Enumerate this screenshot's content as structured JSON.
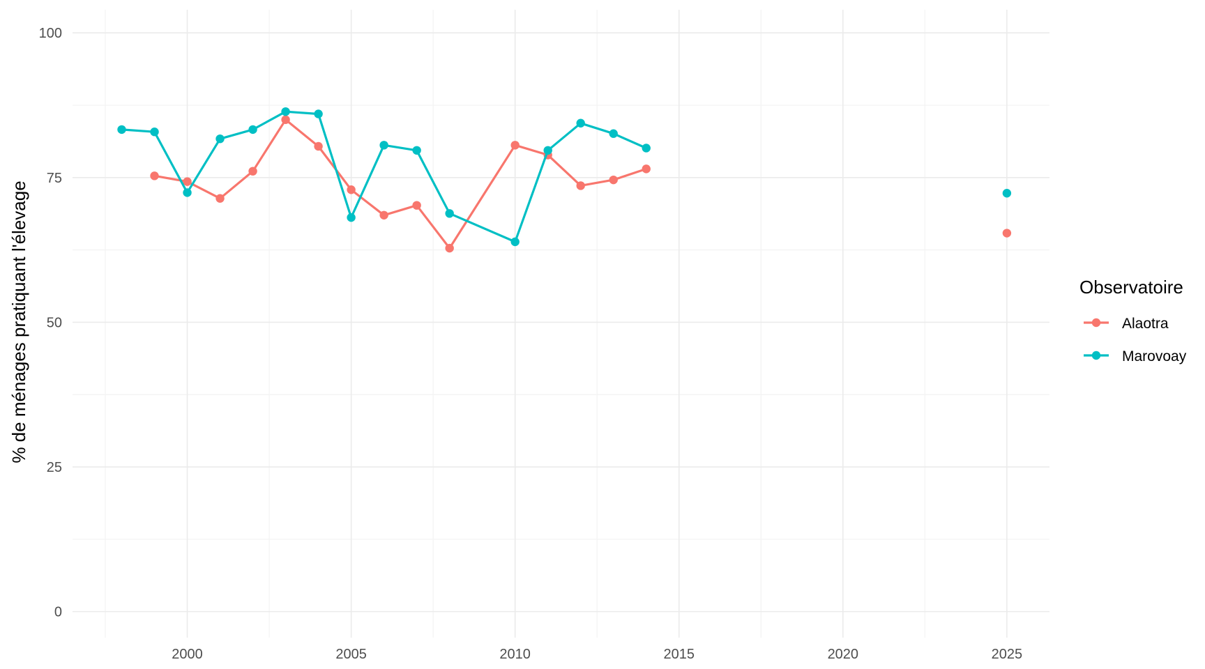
{
  "chart_data": {
    "type": "line",
    "title": "",
    "xlabel": "",
    "ylabel": "% de ménages pratiquant l'élevage",
    "xlim": [
      1996.5,
      2026.3
    ],
    "ylim": [
      -4.5,
      104
    ],
    "x_ticks": [
      2000,
      2005,
      2010,
      2015,
      2020,
      2025
    ],
    "y_ticks": [
      0,
      25,
      50,
      75,
      100
    ],
    "grid": true,
    "legend": {
      "title": "Observatoire",
      "position": "right"
    },
    "series": [
      {
        "name": "Alaotra",
        "color": "#F8766D",
        "segments": [
          [
            [
              1999,
              75.3
            ],
            [
              2000,
              74.3
            ],
            [
              2001,
              71.4
            ],
            [
              2002,
              76.1
            ],
            [
              2003,
              85.0
            ],
            [
              2004,
              80.4
            ],
            [
              2005,
              72.9
            ],
            [
              2006,
              68.5
            ],
            [
              2007,
              70.2
            ],
            [
              2008,
              62.8
            ],
            [
              2010,
              80.6
            ],
            [
              2011,
              78.9
            ],
            [
              2012,
              73.6
            ],
            [
              2013,
              74.6
            ],
            [
              2014,
              76.5
            ]
          ],
          [
            [
              2025,
              65.4
            ]
          ]
        ]
      },
      {
        "name": "Marovoay",
        "color": "#00BFC4",
        "segments": [
          [
            [
              1998,
              83.3
            ],
            [
              1999,
              82.9
            ],
            [
              2000,
              72.4
            ],
            [
              2001,
              81.7
            ],
            [
              2002,
              83.3
            ],
            [
              2003,
              86.4
            ],
            [
              2004,
              86.0
            ],
            [
              2005,
              68.1
            ],
            [
              2006,
              80.6
            ],
            [
              2007,
              79.7
            ],
            [
              2008,
              68.8
            ],
            [
              2010,
              63.9
            ],
            [
              2011,
              79.7
            ],
            [
              2012,
              84.4
            ],
            [
              2013,
              82.6
            ],
            [
              2014,
              80.1
            ]
          ],
          [
            [
              2025,
              72.3
            ]
          ]
        ]
      }
    ]
  }
}
